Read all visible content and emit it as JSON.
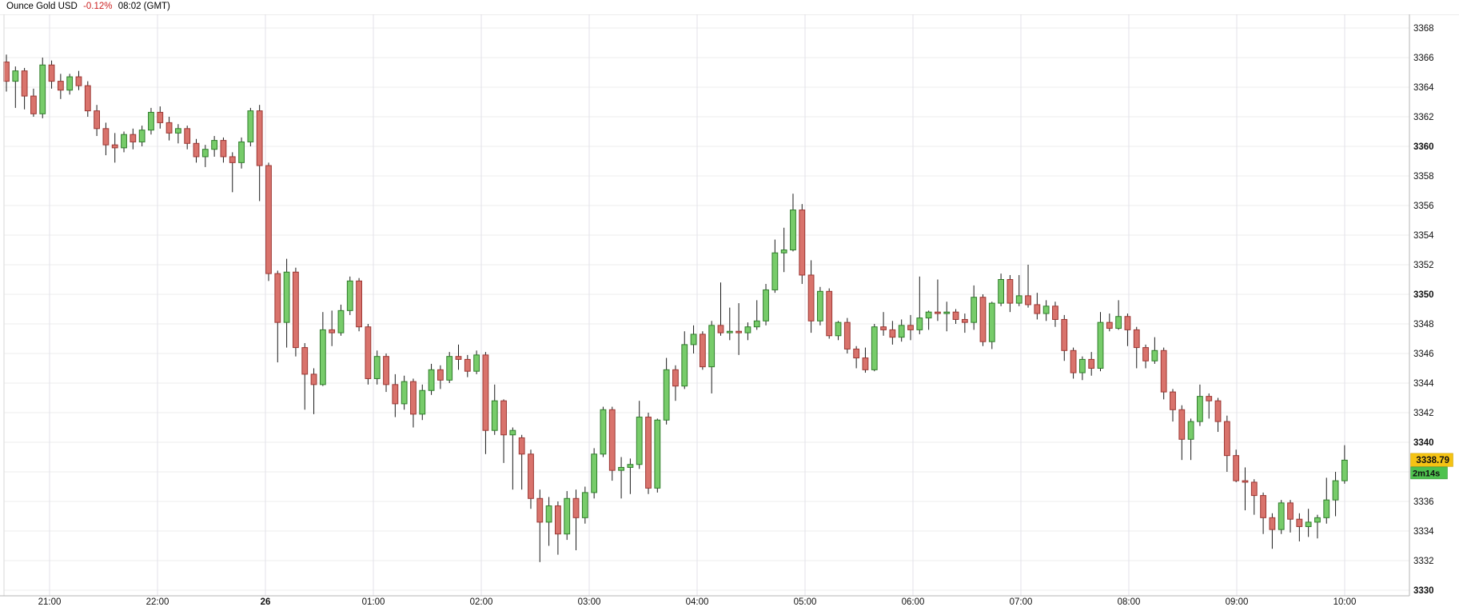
{
  "header": {
    "instrument": "Ounce Gold USD",
    "change_percent": "-0.12%",
    "time": "08:02 (GMT)"
  },
  "price_tag": {
    "value": "3338.79",
    "countdown": "2m14s"
  },
  "colors": {
    "up_fill": "#77cc6a",
    "up_border": "#2f7d2b",
    "down_fill": "#d9736c",
    "down_border": "#9c3733",
    "wick": "#1a1a1a",
    "grid_horizontal": "#ededed",
    "grid_vertical": "#e3e1e9",
    "axis_line": "#b5b5b5",
    "plot_border": "#d9d9d9",
    "price_tag_bg": "#f5c313",
    "countdown_tag_bg": "#4ec24e",
    "change_text": "#cc2222",
    "label_text": "#111111"
  },
  "chart_data": {
    "type": "candlestick",
    "title": "Ounce Gold USD",
    "interval": "5m",
    "x_ticks": [
      "21:00",
      "22:00",
      "26",
      "01:00",
      "02:00",
      "03:00",
      "04:00",
      "05:00",
      "06:00",
      "07:00",
      "08:00",
      "09:00",
      "10:00"
    ],
    "bold_x_ticks": [
      "26"
    ],
    "y_ticks": [
      3368,
      3366,
      3364,
      3362,
      3360,
      3358,
      3356,
      3354,
      3352,
      3350,
      3348,
      3346,
      3344,
      3342,
      3340,
      3336,
      3334,
      3332,
      3330
    ],
    "y_grid_prices": [
      3368,
      3366,
      3364,
      3362,
      3360,
      3358,
      3356,
      3354,
      3352,
      3350,
      3348,
      3346,
      3344,
      3342,
      3340,
      3338,
      3336,
      3334,
      3332,
      3330
    ],
    "ylim": [
      3329.6,
      3369.0
    ],
    "last_price": 3338.79,
    "countdown": "2m14s",
    "legend_position": "none",
    "grid": true,
    "candles_ohlc": [
      [
        3365.7,
        3366.2,
        3363.7,
        3364.4
      ],
      [
        3364.4,
        3365.4,
        3362.6,
        3365.1
      ],
      [
        3365.1,
        3365.3,
        3362.5,
        3363.4
      ],
      [
        3363.4,
        3363.9,
        3362.0,
        3362.2
      ],
      [
        3362.2,
        3366.0,
        3361.9,
        3365.5
      ],
      [
        3365.5,
        3365.8,
        3363.9,
        3364.4
      ],
      [
        3364.4,
        3364.9,
        3363.2,
        3363.8
      ],
      [
        3363.8,
        3364.9,
        3363.5,
        3364.7
      ],
      [
        3364.7,
        3365.1,
        3363.8,
        3364.1
      ],
      [
        3364.1,
        3364.4,
        3362.0,
        3362.4
      ],
      [
        3362.4,
        3362.8,
        3360.7,
        3361.2
      ],
      [
        3361.2,
        3361.6,
        3359.4,
        3360.1
      ],
      [
        3360.1,
        3360.9,
        3358.9,
        3359.9
      ],
      [
        3359.9,
        3361.0,
        3359.6,
        3360.8
      ],
      [
        3360.8,
        3361.2,
        3359.8,
        3360.3
      ],
      [
        3360.3,
        3361.4,
        3360.0,
        3361.1
      ],
      [
        3361.1,
        3362.6,
        3360.8,
        3362.3
      ],
      [
        3362.3,
        3362.7,
        3361.2,
        3361.6
      ],
      [
        3361.6,
        3362.0,
        3360.4,
        3360.9
      ],
      [
        3360.9,
        3361.5,
        3360.2,
        3361.2
      ],
      [
        3361.2,
        3361.4,
        3359.8,
        3360.2
      ],
      [
        3360.2,
        3360.5,
        3358.9,
        3359.3
      ],
      [
        3359.3,
        3360.1,
        3358.6,
        3359.8
      ],
      [
        3359.8,
        3360.7,
        3359.3,
        3360.4
      ],
      [
        3360.4,
        3360.6,
        3358.9,
        3359.3
      ],
      [
        3359.3,
        3359.6,
        3356.9,
        3358.9
      ],
      [
        3358.9,
        3360.6,
        3358.5,
        3360.3
      ],
      [
        3360.3,
        3362.6,
        3360.0,
        3362.4
      ],
      [
        3362.4,
        3362.8,
        3356.3,
        3358.7
      ],
      [
        3358.7,
        3358.9,
        3350.9,
        3351.4
      ],
      [
        3351.4,
        3351.6,
        3345.4,
        3348.1
      ],
      [
        3348.1,
        3352.4,
        3346.4,
        3351.5
      ],
      [
        3351.5,
        3351.8,
        3345.8,
        3346.4
      ],
      [
        3346.4,
        3346.7,
        3342.2,
        3344.6
      ],
      [
        3344.6,
        3345.0,
        3341.9,
        3343.9
      ],
      [
        3343.9,
        3348.8,
        3343.8,
        3347.6
      ],
      [
        3347.6,
        3348.9,
        3346.5,
        3347.4
      ],
      [
        3347.4,
        3349.3,
        3347.2,
        3348.9
      ],
      [
        3348.9,
        3351.2,
        3348.6,
        3350.9
      ],
      [
        3350.9,
        3351.1,
        3347.5,
        3347.8
      ],
      [
        3347.8,
        3348.0,
        3343.9,
        3344.3
      ],
      [
        3344.3,
        3346.2,
        3343.9,
        3345.8
      ],
      [
        3345.8,
        3346.0,
        3343.4,
        3343.9
      ],
      [
        3343.9,
        3344.6,
        3341.7,
        3342.6
      ],
      [
        3342.6,
        3344.5,
        3342.2,
        3344.1
      ],
      [
        3344.1,
        3344.3,
        3341.0,
        3341.9
      ],
      [
        3341.9,
        3343.9,
        3341.5,
        3343.5
      ],
      [
        3343.5,
        3345.3,
        3343.2,
        3344.9
      ],
      [
        3344.9,
        3345.2,
        3343.6,
        3344.2
      ],
      [
        3344.2,
        3346.1,
        3344.0,
        3345.8
      ],
      [
        3345.8,
        3346.6,
        3344.9,
        3345.6
      ],
      [
        3345.6,
        3345.9,
        3344.4,
        3344.8
      ],
      [
        3344.8,
        3346.2,
        3344.6,
        3345.9
      ],
      [
        3345.9,
        3346.1,
        3339.2,
        3340.8
      ],
      [
        3340.8,
        3343.9,
        3340.5,
        3342.8
      ],
      [
        3342.8,
        3342.9,
        3338.6,
        3340.5
      ],
      [
        3340.5,
        3341.0,
        3336.8,
        3340.8
      ],
      [
        3340.3,
        3340.5,
        3336.8,
        3339.2
      ],
      [
        3339.2,
        3339.5,
        3335.5,
        3336.2
      ],
      [
        3336.2,
        3336.8,
        3331.9,
        3334.6
      ],
      [
        3334.6,
        3336.3,
        3333.0,
        3335.7
      ],
      [
        3335.7,
        3336.0,
        3332.4,
        3333.8
      ],
      [
        3333.8,
        3336.7,
        3333.4,
        3336.2
      ],
      [
        3336.2,
        3336.8,
        3332.7,
        3334.9
      ],
      [
        3334.9,
        3337.0,
        3334.5,
        3336.6
      ],
      [
        3336.6,
        3339.6,
        3336.2,
        3339.2
      ],
      [
        3339.2,
        3342.4,
        3339.0,
        3342.2
      ],
      [
        3342.2,
        3342.4,
        3337.4,
        3338.1
      ],
      [
        3338.1,
        3339.0,
        3336.2,
        3338.3
      ],
      [
        3338.3,
        3338.9,
        3336.5,
        3338.5
      ],
      [
        3338.5,
        3342.8,
        3338.2,
        3341.7
      ],
      [
        3341.7,
        3342.0,
        3336.5,
        3336.9
      ],
      [
        3336.9,
        3341.6,
        3336.6,
        3341.5
      ],
      [
        3341.5,
        3345.7,
        3341.2,
        3344.9
      ],
      [
        3344.9,
        3345.2,
        3342.8,
        3343.8
      ],
      [
        3343.8,
        3347.5,
        3343.6,
        3346.6
      ],
      [
        3346.6,
        3347.9,
        3346.0,
        3347.3
      ],
      [
        3347.3,
        3347.5,
        3344.9,
        3345.1
      ],
      [
        3345.1,
        3348.2,
        3343.3,
        3347.9
      ],
      [
        3347.9,
        3350.8,
        3347.2,
        3347.4
      ],
      [
        3347.4,
        3349.1,
        3346.9,
        3347.5
      ],
      [
        3347.5,
        3349.4,
        3345.9,
        3347.4
      ],
      [
        3347.4,
        3348.1,
        3346.9,
        3347.8
      ],
      [
        3347.8,
        3349.6,
        3347.6,
        3348.2
      ],
      [
        3348.2,
        3350.7,
        3347.9,
        3350.3
      ],
      [
        3350.3,
        3353.7,
        3350.1,
        3352.8
      ],
      [
        3352.8,
        3354.5,
        3351.5,
        3353.0
      ],
      [
        3353.0,
        3356.8,
        3352.9,
        3355.7
      ],
      [
        3355.7,
        3356.1,
        3350.7,
        3351.3
      ],
      [
        3351.3,
        3352.3,
        3347.4,
        3348.2
      ],
      [
        3348.2,
        3350.5,
        3347.9,
        3350.2
      ],
      [
        3350.2,
        3350.4,
        3347.0,
        3347.2
      ],
      [
        3347.2,
        3348.2,
        3346.9,
        3348.1
      ],
      [
        3348.1,
        3348.4,
        3346.0,
        3346.3
      ],
      [
        3346.3,
        3346.5,
        3345.0,
        3345.7
      ],
      [
        3345.7,
        3346.4,
        3344.7,
        3344.9
      ],
      [
        3344.9,
        3348.0,
        3344.8,
        3347.8
      ],
      [
        3347.8,
        3348.8,
        3347.2,
        3347.6
      ],
      [
        3347.6,
        3348.2,
        3346.6,
        3347.1
      ],
      [
        3347.1,
        3348.3,
        3346.8,
        3347.9
      ],
      [
        3347.9,
        3348.6,
        3346.9,
        3347.6
      ],
      [
        3347.6,
        3351.2,
        3347.3,
        3348.4
      ],
      [
        3348.4,
        3348.9,
        3347.6,
        3348.8
      ],
      [
        3348.8,
        3351.0,
        3348.2,
        3348.7
      ],
      [
        3348.7,
        3349.5,
        3347.5,
        3348.8
      ],
      [
        3348.8,
        3349.0,
        3348.0,
        3348.3
      ],
      [
        3348.3,
        3348.7,
        3347.4,
        3348.1
      ],
      [
        3348.1,
        3350.6,
        3347.6,
        3349.8
      ],
      [
        3349.8,
        3350.0,
        3346.5,
        3346.8
      ],
      [
        3346.8,
        3349.5,
        3346.3,
        3349.4
      ],
      [
        3349.4,
        3351.4,
        3349.2,
        3351.0
      ],
      [
        3351.0,
        3351.3,
        3348.8,
        3349.4
      ],
      [
        3349.4,
        3351.3,
        3349.2,
        3349.9
      ],
      [
        3349.9,
        3352.0,
        3349.1,
        3349.3
      ],
      [
        3349.3,
        3350.1,
        3348.3,
        3348.7
      ],
      [
        3348.7,
        3349.6,
        3348.2,
        3349.2
      ],
      [
        3349.2,
        3349.5,
        3347.8,
        3348.3
      ],
      [
        3348.3,
        3348.6,
        3345.5,
        3346.2
      ],
      [
        3346.2,
        3346.4,
        3344.3,
        3344.7
      ],
      [
        3344.7,
        3345.8,
        3344.2,
        3345.6
      ],
      [
        3345.6,
        3346.1,
        3344.5,
        3345.0
      ],
      [
        3345.0,
        3348.8,
        3344.8,
        3348.1
      ],
      [
        3348.1,
        3348.7,
        3347.5,
        3347.7
      ],
      [
        3347.7,
        3349.6,
        3347.6,
        3348.5
      ],
      [
        3348.5,
        3348.7,
        3346.5,
        3347.6
      ],
      [
        3347.6,
        3347.8,
        3345.0,
        3346.4
      ],
      [
        3346.4,
        3346.6,
        3345.0,
        3345.5
      ],
      [
        3345.5,
        3347.1,
        3345.3,
        3346.2
      ],
      [
        3346.2,
        3346.4,
        3342.9,
        3343.4
      ],
      [
        3343.4,
        3343.6,
        3341.4,
        3342.2
      ],
      [
        3342.2,
        3342.5,
        3338.8,
        3340.2
      ],
      [
        3340.2,
        3341.6,
        3338.8,
        3341.4
      ],
      [
        3341.4,
        3343.9,
        3341.1,
        3343.1
      ],
      [
        3343.1,
        3343.3,
        3341.6,
        3342.8
      ],
      [
        3342.8,
        3343.0,
        3340.7,
        3341.4
      ],
      [
        3341.4,
        3341.8,
        3338.0,
        3339.1
      ],
      [
        3339.1,
        3339.5,
        3337.3,
        3337.4
      ],
      [
        3337.4,
        3338.3,
        3335.4,
        3337.3
      ],
      [
        3337.3,
        3337.5,
        3335.1,
        3336.4
      ],
      [
        3336.4,
        3336.6,
        3333.8,
        3334.9
      ],
      [
        3334.9,
        3335.2,
        3332.8,
        3334.1
      ],
      [
        3334.1,
        3336.1,
        3333.8,
        3335.9
      ],
      [
        3335.9,
        3336.1,
        3333.9,
        3334.8
      ],
      [
        3334.8,
        3335.2,
        3333.3,
        3334.3
      ],
      [
        3334.3,
        3335.5,
        3333.6,
        3334.6
      ],
      [
        3334.6,
        3335.1,
        3333.5,
        3334.9
      ],
      [
        3334.9,
        3337.6,
        3334.5,
        3336.1
      ],
      [
        3336.1,
        3338.0,
        3335.0,
        3337.4
      ],
      [
        3337.4,
        3339.8,
        3337.2,
        3338.79
      ]
    ]
  }
}
